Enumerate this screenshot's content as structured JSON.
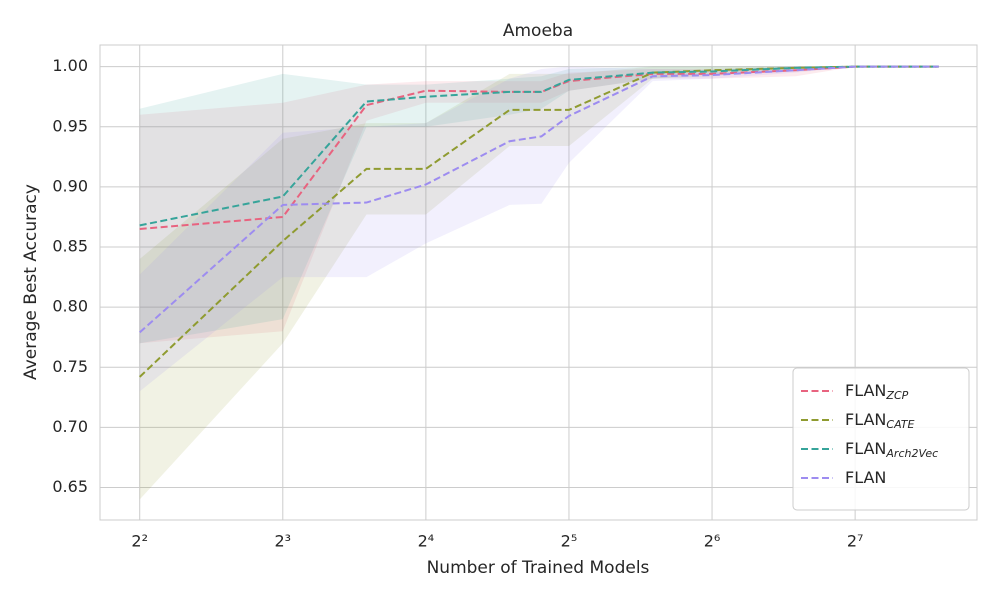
{
  "chart_data": {
    "type": "line",
    "title": "Amoeba",
    "x_label": "Number of Trained Models",
    "y_label": "Average Best Accuracy",
    "log_x_base": 2,
    "grid": true,
    "legend": "lower right",
    "x": [
      4,
      8,
      12,
      16,
      24,
      28,
      32,
      48,
      64,
      96,
      128,
      192
    ],
    "xlim": [
      3.3,
      231
    ],
    "ylim": [
      0.623,
      1.018
    ],
    "xticks": [
      {
        "value": 4,
        "label": "2²"
      },
      {
        "value": 8,
        "label": "2³"
      },
      {
        "value": 16,
        "label": "2⁴"
      },
      {
        "value": 32,
        "label": "2⁵"
      },
      {
        "value": 64,
        "label": "2⁶"
      },
      {
        "value": 128,
        "label": "2⁷"
      }
    ],
    "yticks": [
      {
        "value": 0.65,
        "label": "0.65"
      },
      {
        "value": 0.7,
        "label": "0.70"
      },
      {
        "value": 0.75,
        "label": "0.75"
      },
      {
        "value": 0.8,
        "label": "0.80"
      },
      {
        "value": 0.85,
        "label": "0.85"
      },
      {
        "value": 0.9,
        "label": "0.90"
      },
      {
        "value": 0.95,
        "label": "0.95"
      },
      {
        "value": 1,
        "label": "1.00"
      }
    ],
    "series": [
      {
        "name": "FLAN",
        "subscript": "ZCP",
        "color": "#e8637f",
        "values": [
          0.865,
          0.875,
          0.968,
          0.98,
          0.979,
          0.979,
          0.988,
          0.994,
          0.994,
          0.997,
          1.0,
          1.0
        ],
        "lower": [
          0.77,
          0.78,
          0.955,
          0.97,
          0.97,
          0.97,
          0.98,
          0.99,
          0.99,
          0.992,
          1.0,
          1.0
        ],
        "upper": [
          0.96,
          0.97,
          0.985,
          0.988,
          0.988,
          0.988,
          0.995,
          0.998,
          0.998,
          1.0,
          1.0,
          1.0
        ]
      },
      {
        "name": "FLAN",
        "subscript": "CATE",
        "color": "#8f9b30",
        "values": [
          0.742,
          0.855,
          0.915,
          0.915,
          0.964,
          0.964,
          0.964,
          0.995,
          0.997,
          0.999,
          1.0,
          1.0
        ],
        "lower": [
          0.64,
          0.77,
          0.877,
          0.877,
          0.934,
          0.934,
          0.934,
          0.99,
          0.994,
          0.998,
          1.0,
          1.0
        ],
        "upper": [
          0.84,
          0.94,
          0.953,
          0.953,
          0.994,
          0.994,
          0.994,
          1.0,
          1.0,
          1.0,
          1.0,
          1.0
        ]
      },
      {
        "name": "FLAN",
        "subscript": "Arch2Vec",
        "color": "#36a49a",
        "values": [
          0.868,
          0.892,
          0.971,
          0.975,
          0.979,
          0.979,
          0.989,
          0.995,
          0.996,
          0.999,
          1.0,
          1.0
        ],
        "lower": [
          0.77,
          0.79,
          0.95,
          0.95,
          0.96,
          0.965,
          0.98,
          0.99,
          0.992,
          0.998,
          1.0,
          1.0
        ],
        "upper": [
          0.965,
          0.994,
          0.985,
          0.985,
          0.99,
          0.992,
          0.998,
          1.0,
          1.0,
          1.0,
          1.0,
          1.0
        ]
      },
      {
        "name": "FLAN",
        "color": "#9d8cf0",
        "values": [
          0.779,
          0.885,
          0.887,
          0.902,
          0.938,
          0.942,
          0.959,
          0.992,
          0.993,
          0.997,
          1.0,
          1.0
        ],
        "lower": [
          0.73,
          0.825,
          0.825,
          0.853,
          0.885,
          0.886,
          0.92,
          0.988,
          0.99,
          0.995,
          1.0,
          1.0
        ],
        "upper": [
          0.827,
          0.945,
          0.95,
          0.953,
          0.99,
          0.998,
          1.0,
          0.998,
          0.997,
          1.0,
          1.0,
          1.0
        ]
      }
    ]
  }
}
